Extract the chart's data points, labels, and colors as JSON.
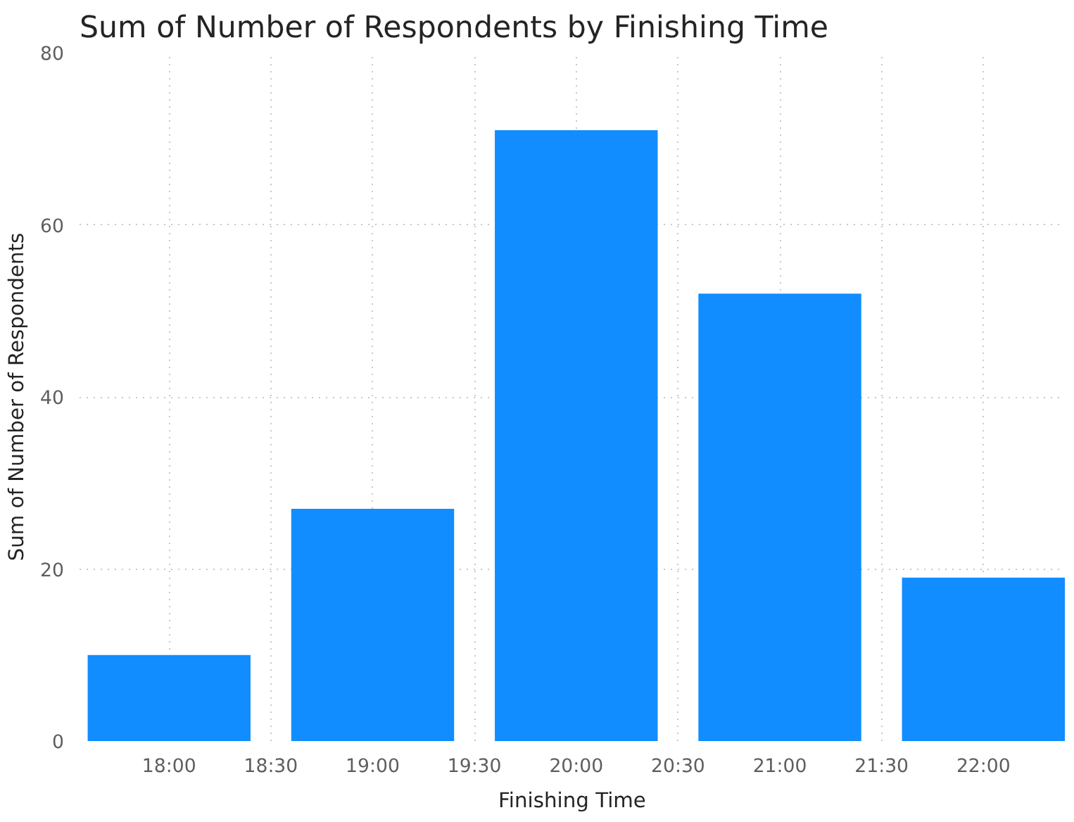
{
  "chart_data": {
    "type": "bar",
    "title": "Sum of Number of Respondents by Finishing Time",
    "xlabel": "Finishing Time",
    "ylabel": "Sum of Number of Respondents",
    "x": [
      18,
      19,
      20,
      21,
      22
    ],
    "series": [
      {
        "color": "#118dff",
        "values": [
          10,
          27,
          71,
          52,
          19
        ]
      }
    ],
    "xlim": [
      17.56,
      22.4
    ],
    "xticks": [
      {
        "value": 18,
        "label": "18:00"
      },
      {
        "value": 18.5,
        "label": "18:30"
      },
      {
        "value": 19,
        "label": "19:00"
      },
      {
        "value": 19.5,
        "label": "19:30"
      },
      {
        "value": 20,
        "label": "20:00"
      },
      {
        "value": 20.5,
        "label": "20:30"
      },
      {
        "value": 21,
        "label": "21:00"
      },
      {
        "value": 21.5,
        "label": "21:30"
      },
      {
        "value": 22,
        "label": "22:00"
      }
    ],
    "ylim": [
      0,
      80
    ],
    "yticks": [
      0,
      20,
      40,
      60,
      80
    ],
    "grid": true
  }
}
